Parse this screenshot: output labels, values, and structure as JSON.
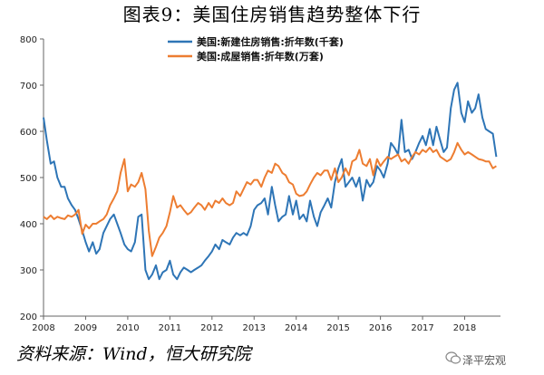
{
  "page": {
    "title": "图表9：美国住房销售趋势整体下行",
    "source": "资料来源：Wind，恒大研究院",
    "watermark": "泽平宏观"
  },
  "chart_data": {
    "type": "line",
    "title": "图表9：美国住房销售趋势整体下行",
    "xlabel": "",
    "ylabel": "",
    "xlim": [
      2008.0,
      2018.85
    ],
    "ylim": [
      200,
      800
    ],
    "yticks": [
      200,
      300,
      400,
      500,
      600,
      700,
      800
    ],
    "xticks": [
      2008,
      2009,
      2010,
      2011,
      2012,
      2013,
      2014,
      2015,
      2016,
      2017,
      2018
    ],
    "grid": false,
    "legend_position": "top-left",
    "series": [
      {
        "name": "美国:新建住房销售:折年数(千套)",
        "color": "#2e75b6",
        "points": [
          [
            2008.0,
            630
          ],
          [
            2008.08,
            580
          ],
          [
            2008.17,
            530
          ],
          [
            2008.25,
            535
          ],
          [
            2008.33,
            500
          ],
          [
            2008.42,
            480
          ],
          [
            2008.5,
            480
          ],
          [
            2008.58,
            455
          ],
          [
            2008.67,
            440
          ],
          [
            2008.75,
            430
          ],
          [
            2008.83,
            410
          ],
          [
            2008.92,
            385
          ],
          [
            2009.0,
            360
          ],
          [
            2009.08,
            340
          ],
          [
            2009.17,
            360
          ],
          [
            2009.25,
            335
          ],
          [
            2009.33,
            345
          ],
          [
            2009.42,
            380
          ],
          [
            2009.5,
            395
          ],
          [
            2009.58,
            410
          ],
          [
            2009.67,
            420
          ],
          [
            2009.75,
            400
          ],
          [
            2009.83,
            380
          ],
          [
            2009.92,
            355
          ],
          [
            2010.0,
            345
          ],
          [
            2010.08,
            340
          ],
          [
            2010.17,
            360
          ],
          [
            2010.25,
            415
          ],
          [
            2010.33,
            420
          ],
          [
            2010.42,
            300
          ],
          [
            2010.5,
            280
          ],
          [
            2010.58,
            290
          ],
          [
            2010.67,
            310
          ],
          [
            2010.75,
            280
          ],
          [
            2010.83,
            295
          ],
          [
            2010.92,
            300
          ],
          [
            2011.0,
            320
          ],
          [
            2011.08,
            290
          ],
          [
            2011.17,
            280
          ],
          [
            2011.25,
            295
          ],
          [
            2011.33,
            305
          ],
          [
            2011.42,
            300
          ],
          [
            2011.5,
            295
          ],
          [
            2011.58,
            300
          ],
          [
            2011.67,
            305
          ],
          [
            2011.75,
            310
          ],
          [
            2011.83,
            320
          ],
          [
            2011.92,
            330
          ],
          [
            2012.0,
            340
          ],
          [
            2012.08,
            355
          ],
          [
            2012.17,
            345
          ],
          [
            2012.25,
            365
          ],
          [
            2012.33,
            360
          ],
          [
            2012.42,
            355
          ],
          [
            2012.5,
            370
          ],
          [
            2012.58,
            380
          ],
          [
            2012.67,
            375
          ],
          [
            2012.75,
            380
          ],
          [
            2012.83,
            375
          ],
          [
            2012.92,
            395
          ],
          [
            2013.0,
            430
          ],
          [
            2013.08,
            440
          ],
          [
            2013.17,
            445
          ],
          [
            2013.25,
            455
          ],
          [
            2013.33,
            420
          ],
          [
            2013.42,
            480
          ],
          [
            2013.5,
            440
          ],
          [
            2013.58,
            405
          ],
          [
            2013.67,
            415
          ],
          [
            2013.75,
            420
          ],
          [
            2013.83,
            460
          ],
          [
            2013.92,
            420
          ],
          [
            2014.0,
            450
          ],
          [
            2014.08,
            410
          ],
          [
            2014.17,
            420
          ],
          [
            2014.25,
            405
          ],
          [
            2014.33,
            450
          ],
          [
            2014.42,
            415
          ],
          [
            2014.5,
            395
          ],
          [
            2014.58,
            425
          ],
          [
            2014.67,
            440
          ],
          [
            2014.75,
            455
          ],
          [
            2014.83,
            435
          ],
          [
            2014.92,
            490
          ],
          [
            2015.0,
            520
          ],
          [
            2015.08,
            540
          ],
          [
            2015.17,
            480
          ],
          [
            2015.25,
            490
          ],
          [
            2015.33,
            500
          ],
          [
            2015.42,
            480
          ],
          [
            2015.5,
            500
          ],
          [
            2015.58,
            450
          ],
          [
            2015.67,
            495
          ],
          [
            2015.75,
            480
          ],
          [
            2015.83,
            490
          ],
          [
            2015.92,
            525
          ],
          [
            2016.0,
            515
          ],
          [
            2016.08,
            500
          ],
          [
            2016.17,
            530
          ],
          [
            2016.25,
            575
          ],
          [
            2016.33,
            565
          ],
          [
            2016.42,
            550
          ],
          [
            2016.5,
            625
          ],
          [
            2016.58,
            555
          ],
          [
            2016.67,
            560
          ],
          [
            2016.75,
            540
          ],
          [
            2016.83,
            555
          ],
          [
            2016.92,
            575
          ],
          [
            2017.0,
            590
          ],
          [
            2017.08,
            570
          ],
          [
            2017.17,
            605
          ],
          [
            2017.25,
            570
          ],
          [
            2017.33,
            610
          ],
          [
            2017.42,
            580
          ],
          [
            2017.5,
            555
          ],
          [
            2017.58,
            565
          ],
          [
            2017.67,
            650
          ],
          [
            2017.75,
            690
          ],
          [
            2017.83,
            705
          ],
          [
            2017.92,
            640
          ],
          [
            2018.0,
            620
          ],
          [
            2018.08,
            665
          ],
          [
            2018.17,
            640
          ],
          [
            2018.25,
            650
          ],
          [
            2018.33,
            680
          ],
          [
            2018.42,
            630
          ],
          [
            2018.5,
            605
          ],
          [
            2018.58,
            600
          ],
          [
            2018.67,
            595
          ],
          [
            2018.75,
            545
          ]
        ]
      },
      {
        "name": "美国:成屋销售:折年数(万套)",
        "color": "#ed7d31",
        "points": [
          [
            2008.0,
            415
          ],
          [
            2008.08,
            410
          ],
          [
            2008.17,
            418
          ],
          [
            2008.25,
            410
          ],
          [
            2008.33,
            415
          ],
          [
            2008.42,
            412
          ],
          [
            2008.5,
            410
          ],
          [
            2008.58,
            418
          ],
          [
            2008.67,
            415
          ],
          [
            2008.75,
            420
          ],
          [
            2008.83,
            430
          ],
          [
            2008.92,
            378
          ],
          [
            2009.0,
            398
          ],
          [
            2009.08,
            390
          ],
          [
            2009.17,
            400
          ],
          [
            2009.25,
            400
          ],
          [
            2009.33,
            405
          ],
          [
            2009.42,
            410
          ],
          [
            2009.5,
            420
          ],
          [
            2009.58,
            440
          ],
          [
            2009.67,
            455
          ],
          [
            2009.75,
            470
          ],
          [
            2009.83,
            510
          ],
          [
            2009.92,
            540
          ],
          [
            2010.0,
            470
          ],
          [
            2010.08,
            485
          ],
          [
            2010.17,
            480
          ],
          [
            2010.25,
            490
          ],
          [
            2010.33,
            510
          ],
          [
            2010.42,
            475
          ],
          [
            2010.5,
            385
          ],
          [
            2010.58,
            330
          ],
          [
            2010.67,
            350
          ],
          [
            2010.75,
            370
          ],
          [
            2010.83,
            380
          ],
          [
            2010.92,
            395
          ],
          [
            2011.0,
            425
          ],
          [
            2011.08,
            460
          ],
          [
            2011.17,
            435
          ],
          [
            2011.25,
            440
          ],
          [
            2011.33,
            430
          ],
          [
            2011.42,
            420
          ],
          [
            2011.5,
            425
          ],
          [
            2011.58,
            435
          ],
          [
            2011.67,
            445
          ],
          [
            2011.75,
            440
          ],
          [
            2011.83,
            430
          ],
          [
            2011.92,
            445
          ],
          [
            2012.0,
            435
          ],
          [
            2012.08,
            450
          ],
          [
            2012.17,
            445
          ],
          [
            2012.25,
            455
          ],
          [
            2012.33,
            445
          ],
          [
            2012.42,
            440
          ],
          [
            2012.5,
            445
          ],
          [
            2012.58,
            470
          ],
          [
            2012.67,
            460
          ],
          [
            2012.75,
            475
          ],
          [
            2012.83,
            490
          ],
          [
            2012.92,
            485
          ],
          [
            2013.0,
            495
          ],
          [
            2013.08,
            495
          ],
          [
            2013.17,
            480
          ],
          [
            2013.25,
            500
          ],
          [
            2013.33,
            515
          ],
          [
            2013.42,
            510
          ],
          [
            2013.5,
            530
          ],
          [
            2013.58,
            525
          ],
          [
            2013.67,
            510
          ],
          [
            2013.75,
            505
          ],
          [
            2013.83,
            490
          ],
          [
            2013.92,
            485
          ],
          [
            2014.0,
            465
          ],
          [
            2014.08,
            460
          ],
          [
            2014.17,
            462
          ],
          [
            2014.25,
            470
          ],
          [
            2014.33,
            485
          ],
          [
            2014.42,
            500
          ],
          [
            2014.5,
            510
          ],
          [
            2014.58,
            505
          ],
          [
            2014.67,
            515
          ],
          [
            2014.75,
            515
          ],
          [
            2014.83,
            495
          ],
          [
            2014.92,
            520
          ],
          [
            2015.0,
            490
          ],
          [
            2015.08,
            500
          ],
          [
            2015.17,
            520
          ],
          [
            2015.25,
            505
          ],
          [
            2015.33,
            535
          ],
          [
            2015.42,
            540
          ],
          [
            2015.5,
            560
          ],
          [
            2015.58,
            530
          ],
          [
            2015.67,
            525
          ],
          [
            2015.75,
            540
          ],
          [
            2015.83,
            505
          ],
          [
            2015.92,
            540
          ],
          [
            2016.0,
            525
          ],
          [
            2016.08,
            535
          ],
          [
            2016.17,
            545
          ],
          [
            2016.25,
            540
          ],
          [
            2016.33,
            545
          ],
          [
            2016.42,
            550
          ],
          [
            2016.5,
            535
          ],
          [
            2016.58,
            540
          ],
          [
            2016.67,
            530
          ],
          [
            2016.75,
            545
          ],
          [
            2016.83,
            555
          ],
          [
            2016.92,
            550
          ],
          [
            2017.0,
            560
          ],
          [
            2017.08,
            555
          ],
          [
            2017.17,
            565
          ],
          [
            2017.25,
            555
          ],
          [
            2017.33,
            560
          ],
          [
            2017.42,
            545
          ],
          [
            2017.5,
            540
          ],
          [
            2017.58,
            535
          ],
          [
            2017.67,
            540
          ],
          [
            2017.75,
            555
          ],
          [
            2017.83,
            575
          ],
          [
            2017.92,
            560
          ],
          [
            2018.0,
            550
          ],
          [
            2018.08,
            555
          ],
          [
            2018.17,
            550
          ],
          [
            2018.25,
            545
          ],
          [
            2018.33,
            540
          ],
          [
            2018.42,
            538
          ],
          [
            2018.5,
            535
          ],
          [
            2018.58,
            535
          ],
          [
            2018.67,
            520
          ],
          [
            2018.75,
            525
          ]
        ]
      }
    ]
  }
}
